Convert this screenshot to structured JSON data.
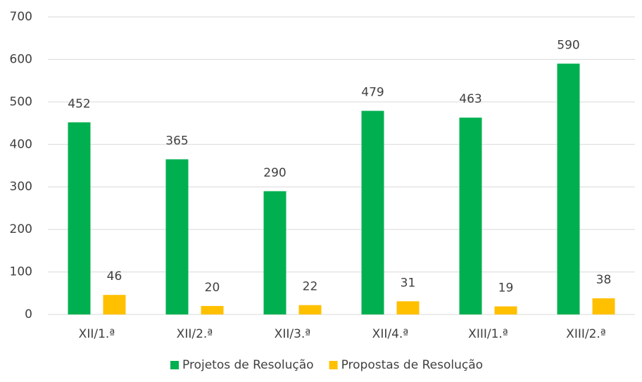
{
  "chart_data": {
    "type": "bar",
    "categories": [
      "XII/1.ª",
      "XII/2.ª",
      "XII/3.ª",
      "XII/4.ª",
      "XIII/1.ª",
      "XIII/2.ª"
    ],
    "series": [
      {
        "name": "Projetos de Resolução",
        "color": "#00b050",
        "values": [
          452,
          365,
          290,
          479,
          463,
          590
        ]
      },
      {
        "name": "Propostas de Resolução",
        "color": "#ffc000",
        "values": [
          46,
          20,
          22,
          31,
          19,
          38
        ]
      }
    ],
    "ylim": [
      0,
      700
    ],
    "yticks": [
      0,
      100,
      200,
      300,
      400,
      500,
      600,
      700
    ],
    "grid": true,
    "legend": "bottom"
  }
}
